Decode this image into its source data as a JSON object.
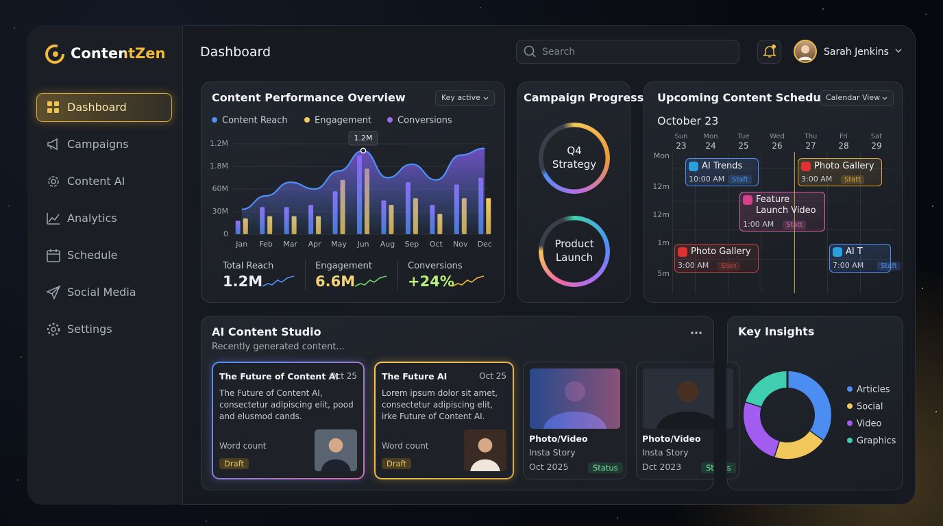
{
  "sidebar": {
    "brand": "ContentZen",
    "nav": [
      "Dashboard",
      "Campaigns",
      "Content AI",
      "Analytics",
      "Schedule",
      "Social Media",
      "Settings"
    ]
  },
  "header": {
    "title": "Dashboard",
    "search": "Search",
    "user": "Sarah Jenkins"
  },
  "performance": {
    "filter": "Key active",
    "stats": [
      {
        "label": "Total Reach",
        "value": "1.2M"
      },
      {
        "label": "Engagement",
        "value": "6.6M"
      },
      {
        "label": "Conversions",
        "value": "+24%"
      }
    ]
  },
  "campaigns": {
    "title": "Campaign Progress",
    "items": [
      "Q4 Strategy",
      "Product Launch"
    ]
  },
  "schedule": {
    "title": "Upcoming Content Schedule",
    "view": "Calendar View",
    "month": "October 23",
    "days": [
      {
        "name": "Sun",
        "date": "23"
      },
      {
        "name": "Mon",
        "date": "24"
      },
      {
        "name": "Tue",
        "date": "25"
      },
      {
        "name": "Wed",
        "date": "26"
      },
      {
        "name": "Thu",
        "date": "27"
      },
      {
        "name": "Fri",
        "date": "28"
      },
      {
        "name": "Sat",
        "date": "29"
      }
    ],
    "rows": [
      "Mon",
      "12m",
      "12m",
      "1m",
      "5m"
    ],
    "events": [
      {
        "title": "AI Trends",
        "time": "10:00 AM",
        "status": "Staft"
      },
      {
        "title": "Photo Gallery",
        "time": "3:00 AM",
        "status": "Statt"
      },
      {
        "title": "Feature Launch Video",
        "time": "1:00 AM",
        "status": "Statt"
      },
      {
        "title": "Photo Gallery",
        "time": "3:00 AM",
        "status": "Stan"
      },
      {
        "title": "AI T",
        "time": "7:00 AM",
        "status": "Staft"
      }
    ]
  },
  "studio": {
    "title": "AI Content Studio",
    "subtitle": "Recently generated content...",
    "cards": [
      {
        "title": "The Future of Content AI",
        "date": "Oct 25",
        "body": "The Future of Content AI, consectetur adlpiscing elit, pood and elusmod cands.",
        "meta": "Word count",
        "status": "Draft"
      },
      {
        "title": "The Future AI",
        "date": "Oct 25",
        "body": "Lorem ipsum dolor sit amet, consectetur adipiscing elit, irke Future of Content AI.",
        "meta": "Word count",
        "status": "Draft"
      }
    ],
    "media": [
      {
        "type": "Photo/Video",
        "sub": "Insta Story",
        "date": "Oct 2025",
        "status": "Status"
      },
      {
        "type": "Photo/Video",
        "sub": "Insta Story",
        "date": "Dct 2023",
        "status": "Status"
      }
    ]
  },
  "chart_data": [
    {
      "type": "bar",
      "title": "Content Performance Overview",
      "categories": [
        "Jan",
        "Feb",
        "Mar",
        "Apr",
        "May",
        "Jun",
        "Aug",
        "Sep",
        "Oct",
        "Nov",
        "Dec"
      ],
      "series": [
        {
          "name": "Content Reach",
          "type": "line",
          "color": "#4f8ff7",
          "values": [
            1.1,
            1.7,
            2.3,
            2.0,
            2.8,
            3.7,
            2.5,
            3.1,
            2.4,
            3.5,
            3.8
          ]
        },
        {
          "name": "Engagement",
          "color": "#f5c95a",
          "values": [
            0.7,
            0.8,
            0.8,
            0.8,
            2.4,
            2.9,
            1.3,
            1.6,
            0.9,
            1.6,
            1.6
          ]
        },
        {
          "name": "Conversions",
          "color": "#9b6cf6",
          "values": [
            0.6,
            1.2,
            1.2,
            1.3,
            1.9,
            3.5,
            1.5,
            2.3,
            1.3,
            2.2,
            2.5
          ]
        }
      ],
      "ylim": [
        0,
        4
      ],
      "yticks": [
        0,
        {
          "value": 1,
          "label": "30M"
        },
        {
          "value": 2,
          "label": "60M"
        },
        {
          "value": 3,
          "label": "1.8M"
        },
        {
          "value": 4,
          "label": "1.2M"
        }
      ],
      "grid": true,
      "annotation": "1.2M"
    },
    {
      "type": "pie",
      "title": "Key Insights",
      "categories": [
        "Articles",
        "Social",
        "Video",
        "Graphics"
      ],
      "values": [
        35,
        20,
        25,
        20
      ],
      "colors": [
        "#4b8df0",
        "#f2c75c",
        "#a25cf0",
        "#3fcfb0"
      ]
    }
  ]
}
